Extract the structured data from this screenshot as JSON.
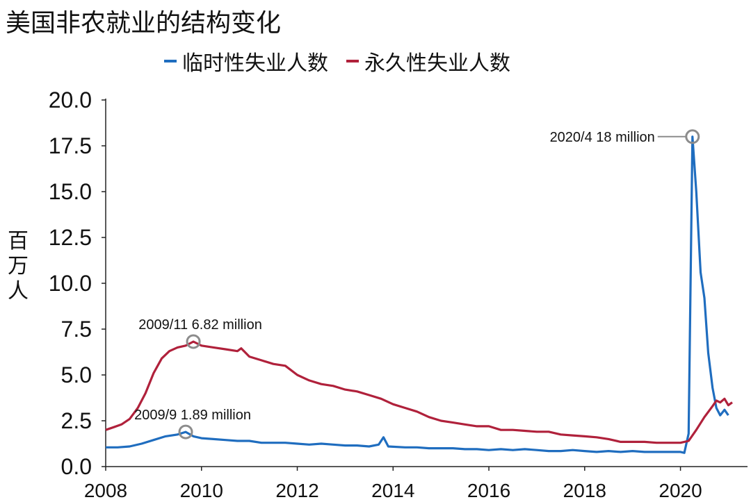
{
  "chart_data": {
    "type": "line",
    "title": "美国非农就业的结构变化",
    "ylabel": "百万人",
    "xlabel": "",
    "ylim": [
      0,
      20
    ],
    "xlim": [
      2008.0,
      2021.4
    ],
    "yticks": [
      "0.0",
      "2.5",
      "5.0",
      "7.5",
      "10.0",
      "12.5",
      "15.0",
      "17.5",
      "20.0"
    ],
    "xticks": [
      "2008",
      "2010",
      "2012",
      "2014",
      "2016",
      "2018",
      "2020"
    ],
    "grid": false,
    "legend_position": "top",
    "series": [
      {
        "name": "临时性失业人数",
        "color": "#1f6dbf",
        "points": [
          [
            2008.0,
            1.05
          ],
          [
            2008.25,
            1.05
          ],
          [
            2008.5,
            1.1
          ],
          [
            2008.75,
            1.25
          ],
          [
            2009.0,
            1.45
          ],
          [
            2009.25,
            1.65
          ],
          [
            2009.5,
            1.75
          ],
          [
            2009.67,
            1.89
          ],
          [
            2009.83,
            1.65
          ],
          [
            2010.0,
            1.55
          ],
          [
            2010.25,
            1.5
          ],
          [
            2010.5,
            1.45
          ],
          [
            2010.75,
            1.4
          ],
          [
            2011.0,
            1.4
          ],
          [
            2011.25,
            1.3
          ],
          [
            2011.5,
            1.3
          ],
          [
            2011.75,
            1.3
          ],
          [
            2012.0,
            1.25
          ],
          [
            2012.25,
            1.2
          ],
          [
            2012.5,
            1.25
          ],
          [
            2012.75,
            1.2
          ],
          [
            2013.0,
            1.15
          ],
          [
            2013.25,
            1.15
          ],
          [
            2013.5,
            1.1
          ],
          [
            2013.7,
            1.2
          ],
          [
            2013.8,
            1.6
          ],
          [
            2013.9,
            1.1
          ],
          [
            2014.25,
            1.05
          ],
          [
            2014.5,
            1.05
          ],
          [
            2014.75,
            1.0
          ],
          [
            2015.0,
            1.0
          ],
          [
            2015.25,
            1.0
          ],
          [
            2015.5,
            0.95
          ],
          [
            2015.75,
            0.95
          ],
          [
            2016.0,
            0.9
          ],
          [
            2016.25,
            0.95
          ],
          [
            2016.5,
            0.9
          ],
          [
            2016.75,
            0.95
          ],
          [
            2017.0,
            0.9
          ],
          [
            2017.25,
            0.85
          ],
          [
            2017.5,
            0.85
          ],
          [
            2017.75,
            0.9
          ],
          [
            2018.0,
            0.85
          ],
          [
            2018.25,
            0.8
          ],
          [
            2018.5,
            0.85
          ],
          [
            2018.75,
            0.8
          ],
          [
            2019.0,
            0.85
          ],
          [
            2019.25,
            0.8
          ],
          [
            2019.5,
            0.8
          ],
          [
            2019.75,
            0.8
          ],
          [
            2020.0,
            0.8
          ],
          [
            2020.08,
            0.75
          ],
          [
            2020.17,
            1.8
          ],
          [
            2020.25,
            18.0
          ],
          [
            2020.33,
            15.0
          ],
          [
            2020.42,
            10.6
          ],
          [
            2020.5,
            9.2
          ],
          [
            2020.58,
            6.2
          ],
          [
            2020.67,
            4.3
          ],
          [
            2020.75,
            3.2
          ],
          [
            2020.83,
            2.8
          ],
          [
            2020.92,
            3.1
          ],
          [
            2021.0,
            2.8
          ]
        ]
      },
      {
        "name": "永久性失业人数",
        "color": "#b0213b",
        "points": [
          [
            2008.0,
            2.0
          ],
          [
            2008.17,
            2.15
          ],
          [
            2008.33,
            2.3
          ],
          [
            2008.5,
            2.6
          ],
          [
            2008.67,
            3.2
          ],
          [
            2008.83,
            4.0
          ],
          [
            2009.0,
            5.1
          ],
          [
            2009.17,
            5.9
          ],
          [
            2009.33,
            6.3
          ],
          [
            2009.5,
            6.5
          ],
          [
            2009.67,
            6.6
          ],
          [
            2009.83,
            6.82
          ],
          [
            2010.0,
            6.6
          ],
          [
            2010.25,
            6.5
          ],
          [
            2010.5,
            6.4
          ],
          [
            2010.75,
            6.3
          ],
          [
            2010.83,
            6.45
          ],
          [
            2011.0,
            6.0
          ],
          [
            2011.25,
            5.8
          ],
          [
            2011.5,
            5.6
          ],
          [
            2011.75,
            5.5
          ],
          [
            2012.0,
            5.0
          ],
          [
            2012.25,
            4.7
          ],
          [
            2012.5,
            4.5
          ],
          [
            2012.75,
            4.4
          ],
          [
            2013.0,
            4.2
          ],
          [
            2013.25,
            4.1
          ],
          [
            2013.5,
            3.9
          ],
          [
            2013.75,
            3.7
          ],
          [
            2014.0,
            3.4
          ],
          [
            2014.25,
            3.2
          ],
          [
            2014.5,
            3.0
          ],
          [
            2014.75,
            2.7
          ],
          [
            2015.0,
            2.5
          ],
          [
            2015.25,
            2.4
          ],
          [
            2015.5,
            2.3
          ],
          [
            2015.75,
            2.2
          ],
          [
            2016.0,
            2.2
          ],
          [
            2016.25,
            2.0
          ],
          [
            2016.5,
            2.0
          ],
          [
            2016.75,
            1.95
          ],
          [
            2017.0,
            1.9
          ],
          [
            2017.25,
            1.9
          ],
          [
            2017.5,
            1.75
          ],
          [
            2017.75,
            1.7
          ],
          [
            2018.0,
            1.65
          ],
          [
            2018.25,
            1.6
          ],
          [
            2018.5,
            1.5
          ],
          [
            2018.75,
            1.35
          ],
          [
            2019.0,
            1.35
          ],
          [
            2019.25,
            1.35
          ],
          [
            2019.5,
            1.3
          ],
          [
            2019.75,
            1.3
          ],
          [
            2020.0,
            1.3
          ],
          [
            2020.17,
            1.4
          ],
          [
            2020.33,
            2.0
          ],
          [
            2020.5,
            2.7
          ],
          [
            2020.67,
            3.3
          ],
          [
            2020.75,
            3.6
          ],
          [
            2020.83,
            3.5
          ],
          [
            2020.92,
            3.7
          ],
          [
            2021.0,
            3.35
          ],
          [
            2021.08,
            3.5
          ]
        ]
      }
    ],
    "annotations": [
      {
        "text": "2020/4 18 million",
        "x": 2020.25,
        "y": 18.0,
        "label_side": "left"
      },
      {
        "text": "2009/11 6.82 million",
        "x": 2009.83,
        "y": 6.82,
        "label_side": "above"
      },
      {
        "text": "2009/9 1.89 million",
        "x": 2009.67,
        "y": 1.89,
        "label_side": "above"
      }
    ]
  }
}
